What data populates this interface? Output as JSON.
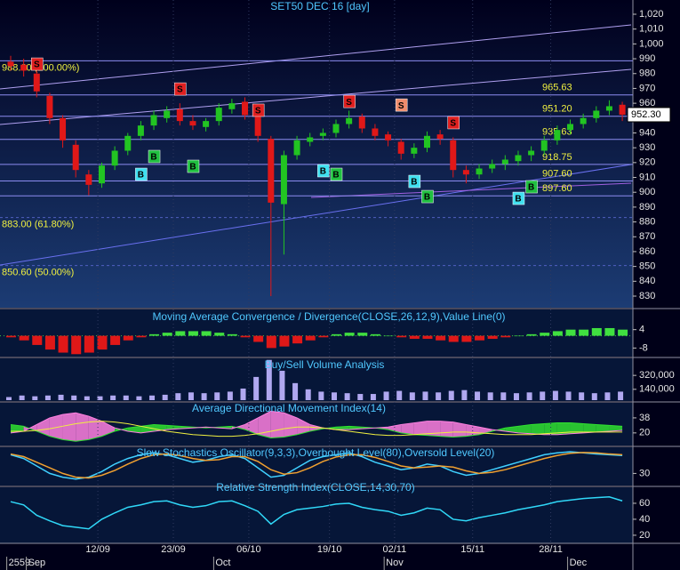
{
  "chart_data": [
    {
      "type": "candlestick",
      "title": "SET50 DEC 16  [day]",
      "open": [
        988,
        986,
        980,
        965,
        950,
        932,
        912,
        906,
        918,
        928,
        938,
        945,
        950,
        956,
        948,
        944,
        948,
        956,
        961,
        952,
        936,
        892,
        925,
        934,
        938,
        940,
        946,
        951,
        943,
        939,
        934,
        926,
        930,
        939,
        935,
        915,
        912,
        916,
        919,
        921,
        925,
        928,
        935,
        942,
        946,
        950,
        955,
        959
      ],
      "high": [
        992,
        990,
        983,
        967,
        952,
        935,
        915,
        920,
        931,
        940,
        948,
        955,
        958,
        960,
        952,
        950,
        960,
        963,
        964,
        955,
        938,
        928,
        938,
        940,
        943,
        949,
        955,
        953,
        946,
        941,
        936,
        933,
        941,
        942,
        937,
        918,
        919,
        922,
        925,
        928,
        931,
        938,
        945,
        949,
        953,
        958,
        962,
        961
      ],
      "low": [
        982,
        978,
        964,
        946,
        930,
        910,
        898,
        903,
        915,
        925,
        935,
        942,
        947,
        945,
        942,
        941,
        945,
        953,
        949,
        934,
        830,
        858,
        922,
        931,
        935,
        937,
        943,
        940,
        935,
        931,
        922,
        923,
        927,
        932,
        910,
        906,
        909,
        913,
        915,
        918,
        921,
        925,
        932,
        939,
        943,
        947,
        952,
        948
      ],
      "close": [
        985,
        982,
        968,
        950,
        935,
        915,
        905,
        918,
        928,
        938,
        945,
        952,
        955,
        948,
        945,
        948,
        957,
        960,
        952,
        938,
        893,
        925,
        935,
        937,
        940,
        946,
        950,
        943,
        938,
        935,
        926,
        930,
        938,
        936,
        915,
        912,
        916,
        919,
        922,
        925,
        928,
        935,
        942,
        946,
        950,
        955,
        958,
        952.3
      ],
      "up_color": "#22c422",
      "down_color": "#e01818",
      "ylim": [
        822.8,
        1029.6
      ],
      "yticks": [
        830,
        840,
        850,
        860,
        870,
        880,
        890,
        900,
        910,
        920,
        930,
        940,
        950,
        960,
        970,
        980,
        990,
        {
          "value": 1000,
          "label": "1,000"
        },
        {
          "value": 1010,
          "label": "1,010"
        },
        {
          "value": 1020,
          "label": "1,020"
        }
      ],
      "levels": [
        {
          "value": 988.6,
          "label": "988.60 (100.00%)"
        },
        {
          "value": 965.63,
          "label": "965.63"
        },
        {
          "value": 951.2,
          "label": "951.20"
        },
        {
          "value": 935.63,
          "label": "935.63"
        },
        {
          "value": 918.75,
          "label": "918.75"
        },
        {
          "value": 907.6,
          "label": "907.60"
        },
        {
          "value": 897.6,
          "label": "897.60"
        },
        {
          "value": 883,
          "label": "883.00 (61.80%)"
        },
        {
          "value": 850.6,
          "label": "850.60 (50.00%)"
        }
      ],
      "last": {
        "value": 952.3,
        "label": "952.30"
      },
      "signals": [
        {
          "index": 2,
          "price": 986.4,
          "label": "S",
          "color": "#e02020"
        },
        {
          "index": 13,
          "price": 969.6,
          "label": "S",
          "color": "#e02020"
        },
        {
          "index": 19,
          "price": 955.3,
          "label": "S",
          "color": "#e02020"
        },
        {
          "index": 26,
          "price": 961.2,
          "label": "S",
          "color": "#e02020"
        },
        {
          "index": 30,
          "price": 958.8,
          "label": "S",
          "color": "#f08c6c"
        },
        {
          "index": 34,
          "price": 946.9,
          "label": "S",
          "color": "#e02020"
        },
        {
          "index": 10,
          "price": 912.1,
          "label": "B",
          "color": "#40e0f0"
        },
        {
          "index": 11,
          "price": 924.1,
          "label": "B",
          "color": "#20c040"
        },
        {
          "index": 14,
          "price": 917.5,
          "label": "B",
          "color": "#20c040"
        },
        {
          "index": 24,
          "price": 914.5,
          "label": "B",
          "color": "#40e0f0"
        },
        {
          "index": 25,
          "price": 912.1,
          "label": "B",
          "color": "#20c040"
        },
        {
          "index": 31,
          "price": 907.3,
          "label": "B",
          "color": "#40e0f0"
        },
        {
          "index": 32,
          "price": 897.1,
          "label": "B",
          "color": "#20c040"
        },
        {
          "index": 39,
          "price": 895.9,
          "label": "B",
          "color": "#40e0f0"
        },
        {
          "index": 40,
          "price": 903.7,
          "label": "B",
          "color": "#20c040"
        }
      ]
    },
    {
      "type": "bar",
      "title": "Moving Average Convergence / Divergence(CLOSE,26,12,9),Value Line(0)",
      "values": [
        -1,
        -3,
        -6,
        -9,
        -11,
        -12,
        -11,
        -9,
        -6,
        -3,
        -1,
        1,
        2,
        3,
        3,
        3,
        2,
        1,
        -1,
        -4,
        -8,
        -7,
        -5,
        -3,
        -1,
        1,
        2,
        2,
        1,
        0,
        -1,
        -2,
        -2,
        -3,
        -4,
        -4,
        -3,
        -2,
        -1,
        0,
        1,
        2,
        3,
        4,
        4,
        5,
        5,
        4
      ],
      "color": "#40e040",
      "negative_color": "#e01818",
      "ylim": [
        -13,
        16
      ],
      "yticks": [
        4,
        -8
      ]
    },
    {
      "type": "bar",
      "title": "Buy/Sell Volume Analysis",
      "values": [
        40000,
        60000,
        50000,
        60000,
        70000,
        60000,
        50000,
        50000,
        60000,
        60000,
        50000,
        60000,
        70000,
        90000,
        100000,
        90000,
        100000,
        110000,
        150000,
        300000,
        520000,
        380000,
        220000,
        140000,
        110000,
        100000,
        90000,
        80000,
        80000,
        110000,
        120000,
        100000,
        110000,
        100000,
        120000,
        130000,
        110000,
        100000,
        100000,
        90000,
        100000,
        110000,
        120000,
        110000,
        100000,
        90000,
        100000,
        110000
      ],
      "color": "#b0a8f0",
      "ylim": [
        0,
        540000
      ],
      "yticks": [
        {
          "value": 320000,
          "label": "320,000"
        },
        {
          "value": 140000,
          "label": "140,000"
        }
      ]
    },
    {
      "type": "line",
      "title": "Average Directional Movement Index(14)",
      "series": [
        {
          "color": "#30e030",
          "values": [
            30,
            28,
            22,
            16,
            12,
            10,
            12,
            16,
            22,
            26,
            28,
            30,
            29,
            28,
            27,
            26,
            27,
            28,
            24,
            18,
            14,
            15,
            18,
            22,
            25,
            27,
            28,
            27,
            26,
            24,
            20,
            18,
            17,
            16,
            15,
            16,
            18,
            22,
            26,
            28,
            30,
            31,
            32,
            32,
            31,
            30,
            29,
            28
          ]
        },
        {
          "color": "#ff80e0",
          "values": [
            20,
            22,
            30,
            38,
            42,
            44,
            40,
            34,
            26,
            22,
            20,
            22,
            24,
            25,
            26,
            27,
            26,
            25,
            30,
            38,
            46,
            44,
            38,
            30,
            26,
            24,
            24,
            25,
            26,
            27,
            30,
            32,
            34,
            34,
            33,
            30,
            27,
            24,
            22,
            20,
            19,
            18,
            18,
            19,
            20,
            21,
            22,
            23
          ]
        },
        {
          "color": "#f0f040",
          "values": [
            22,
            22,
            23,
            25,
            28,
            31,
            33,
            34,
            33,
            31,
            28,
            25,
            22,
            20,
            18,
            17,
            16,
            16,
            17,
            19,
            22,
            25,
            27,
            27,
            26,
            24,
            22,
            20,
            18,
            17,
            17,
            18,
            19,
            20,
            21,
            21,
            20,
            19,
            18,
            18,
            18,
            19,
            20,
            21,
            21,
            21,
            21,
            21
          ]
        }
      ],
      "fill_colors": [
        "#30e030",
        "#ff80e0"
      ],
      "ylim": [
        6,
        56
      ],
      "yticks": [
        38,
        20
      ]
    },
    {
      "type": "line",
      "title": "Slow Stochastics Oscillator(9,3,3),Overbought Level(80),Oversold Level(20)",
      "series": [
        {
          "color": "#40d0ff",
          "values": [
            80,
            70,
            50,
            30,
            20,
            15,
            20,
            35,
            55,
            70,
            80,
            85,
            80,
            70,
            60,
            65,
            75,
            80,
            70,
            45,
            20,
            25,
            45,
            65,
            75,
            80,
            85,
            75,
            60,
            50,
            40,
            45,
            55,
            50,
            35,
            25,
            30,
            40,
            50,
            60,
            70,
            80,
            85,
            88,
            85,
            82,
            80,
            78
          ]
        },
        {
          "color": "#f0a030",
          "values": [
            82,
            75,
            60,
            45,
            30,
            20,
            18,
            25,
            38,
            55,
            70,
            80,
            82,
            78,
            70,
            65,
            67,
            75,
            75,
            62,
            40,
            28,
            32,
            45,
            62,
            74,
            80,
            80,
            73,
            62,
            50,
            45,
            47,
            50,
            47,
            37,
            30,
            33,
            40,
            50,
            60,
            70,
            78,
            84,
            86,
            85,
            82,
            80
          ]
        }
      ],
      "ylim": [
        0,
        100
      ],
      "yticks": [
        30
      ]
    },
    {
      "type": "line",
      "title": "Relative Strength Index(CLOSE,14,30,70)",
      "series": [
        {
          "color": "#30d8f8",
          "values": [
            62,
            58,
            45,
            38,
            32,
            30,
            28,
            40,
            48,
            55,
            58,
            62,
            63,
            58,
            55,
            57,
            62,
            63,
            57,
            50,
            34,
            46,
            52,
            54,
            56,
            59,
            60,
            55,
            52,
            50,
            45,
            48,
            54,
            52,
            40,
            38,
            42,
            45,
            48,
            52,
            55,
            58,
            62,
            64,
            66,
            67,
            68,
            63
          ]
        }
      ],
      "ylim": [
        11,
        80
      ],
      "yticks": [
        60,
        40,
        20
      ],
      "xticks": [
        {
          "value": 6.7,
          "label": "12/09"
        },
        {
          "value": 12.5,
          "label": "23/09"
        },
        {
          "value": 18.3,
          "label": "06/10"
        },
        {
          "value": 24.5,
          "label": "19/10"
        },
        {
          "value": 29.5,
          "label": "02/11"
        },
        {
          "value": 35.5,
          "label": "15/11"
        },
        {
          "value": 41.5,
          "label": "28/11"
        }
      ],
      "x_month_ticks": [
        {
          "value": -0.3,
          "label": "2559"
        },
        {
          "value": 1.2,
          "label": "Sep"
        },
        {
          "value": 15.6,
          "label": "Oct"
        },
        {
          "value": 28.7,
          "label": "Nov"
        },
        {
          "value": 42.8,
          "label": "Dec"
        }
      ]
    }
  ]
}
